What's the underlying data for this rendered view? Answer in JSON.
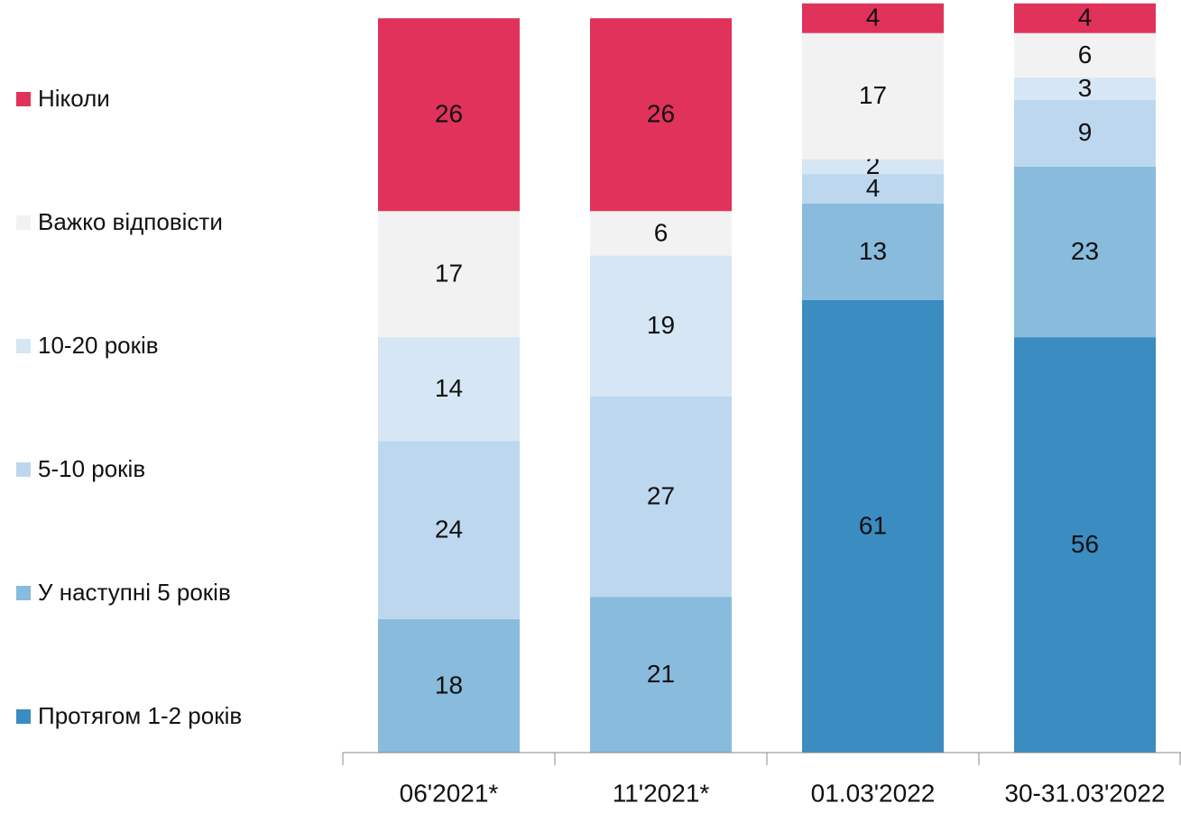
{
  "chart_data": {
    "type": "stacked_bar",
    "categories": [
      "06'2021*",
      "11'2021*",
      "01.03'2022",
      "30-31.03'2022"
    ],
    "series": [
      {
        "name": "Протягом 1-2 років",
        "color": "#3a8cc1",
        "values": [
          0,
          0,
          61,
          56
        ]
      },
      {
        "name": "У наступні 5 років",
        "color": "#88bbdc",
        "values": [
          18,
          21,
          13,
          23
        ]
      },
      {
        "name": "5-10 років",
        "color": "#bdd7ee",
        "values": [
          24,
          27,
          4,
          9
        ]
      },
      {
        "name": "10-20 років",
        "color": "#d6e6f4",
        "values": [
          14,
          19,
          2,
          3
        ]
      },
      {
        "name": "Важко відповісти",
        "color": "#f2f2f2",
        "values": [
          17,
          6,
          17,
          6
        ]
      },
      {
        "name": "Ніколи",
        "color": "#e0325a",
        "values": [
          26,
          26,
          4,
          4
        ]
      }
    ],
    "ylim": [
      0,
      100
    ]
  }
}
